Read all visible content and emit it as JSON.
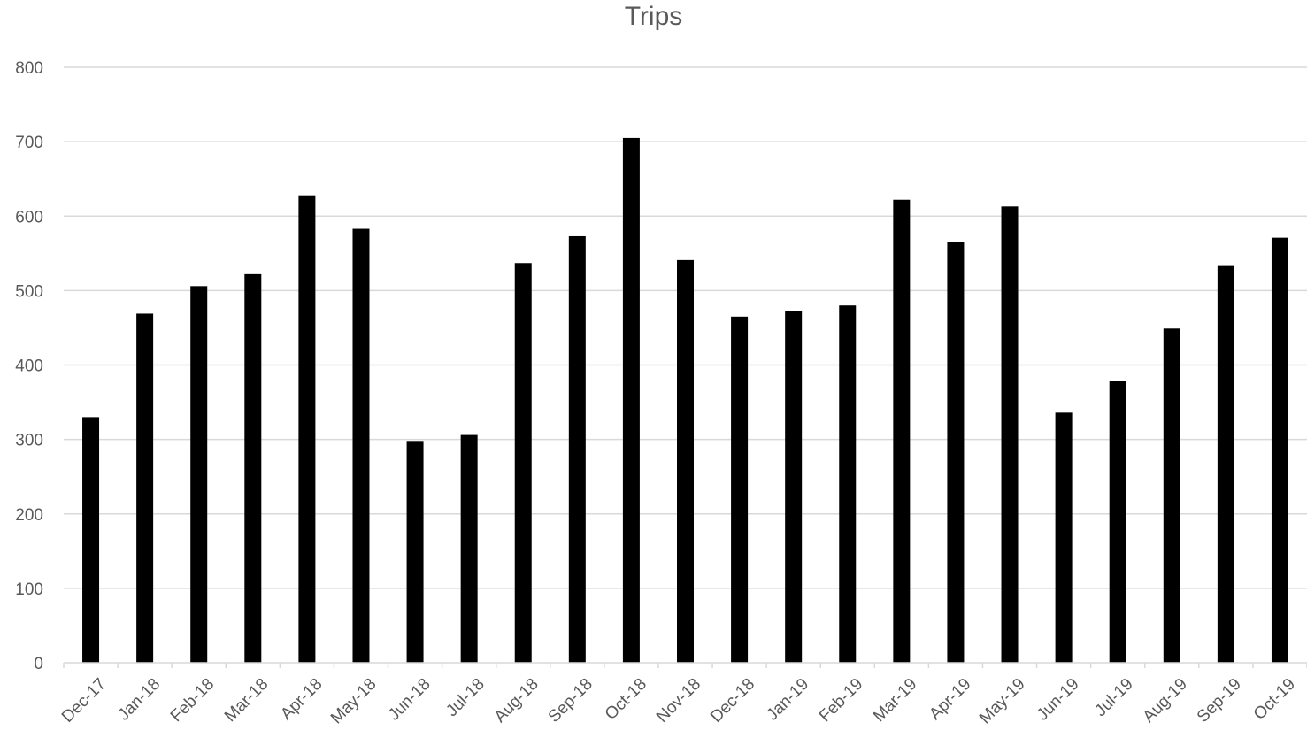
{
  "chart_data": {
    "type": "bar",
    "title": "Trips",
    "xlabel": "",
    "ylabel": "",
    "ylim": [
      0,
      800
    ],
    "yticks": [
      "0",
      "100",
      "200",
      "300",
      "400",
      "500",
      "600",
      "700",
      "800"
    ],
    "grid": true,
    "legend": "none",
    "bar_color": "#000000",
    "categories": [
      "Dec-17",
      "Jan-18",
      "Feb-18",
      "Mar-18",
      "Apr-18",
      "May-18",
      "Jun-18",
      "Jul-18",
      "Aug-18",
      "Sep-18",
      "Oct-18",
      "Nov-18",
      "Dec-18",
      "Jan-19",
      "Feb-19",
      "Mar-19",
      "Apr-19",
      "May-19",
      "Jun-19",
      "Jul-19",
      "Aug-19",
      "Sep-19",
      "Oct-19"
    ],
    "values": [
      330,
      469,
      506,
      522,
      628,
      583,
      298,
      306,
      537,
      573,
      705,
      541,
      465,
      472,
      480,
      622,
      565,
      613,
      336,
      379,
      449,
      533,
      571
    ]
  }
}
